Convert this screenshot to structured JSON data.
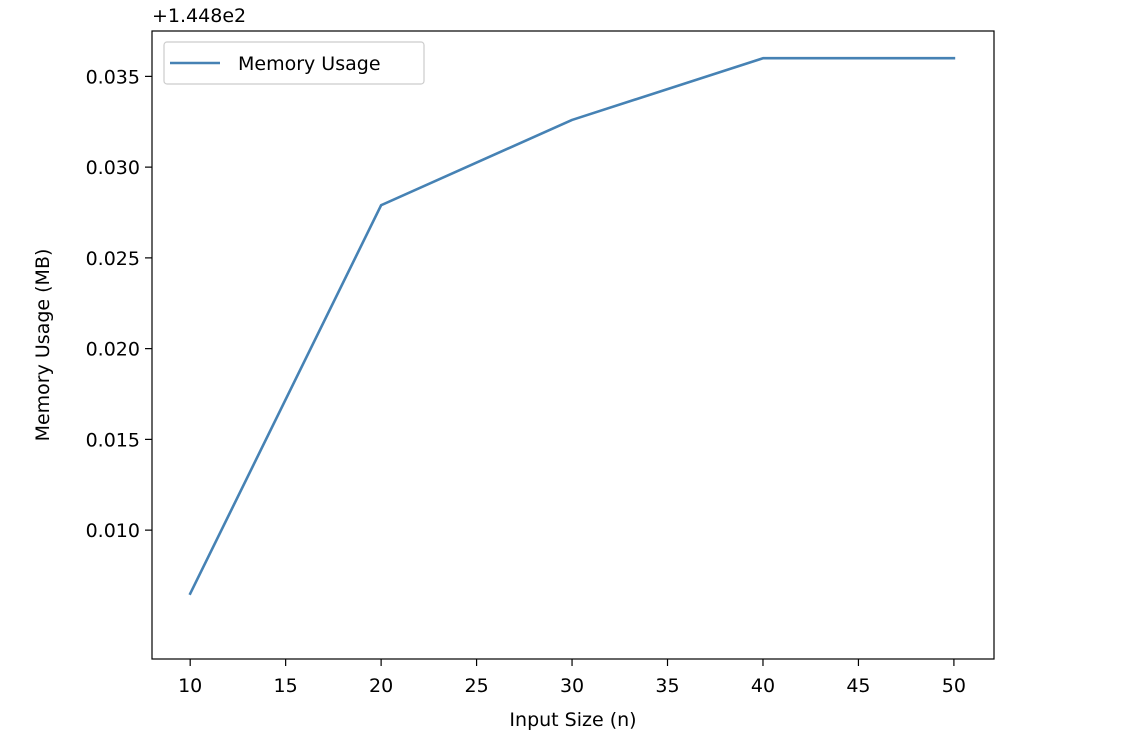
{
  "chart_data": {
    "type": "line",
    "title": "",
    "xlabel": "Input Size (n)",
    "ylabel": "Memory Usage (MB)",
    "offset_label": "+1.448e2",
    "offset_value": 144.8,
    "x": [
      10,
      20,
      30,
      40,
      50
    ],
    "series": [
      {
        "name": "Memory Usage",
        "color": "#4682b4",
        "values": [
          144.8065,
          144.8279,
          144.8326,
          144.836,
          144.836
        ]
      }
    ],
    "xlim": [
      8,
      52.1
    ],
    "ylim": [
      144.8029,
      144.8375
    ],
    "xticks": [
      10,
      15,
      20,
      25,
      30,
      35,
      40,
      45,
      50
    ],
    "xtick_labels": [
      "10",
      "15",
      "20",
      "25",
      "30",
      "35",
      "40",
      "45",
      "50"
    ],
    "yticks": [
      0.01,
      0.015,
      0.02,
      0.025,
      0.03,
      0.035
    ],
    "ytick_labels": [
      "0.010",
      "0.015",
      "0.020",
      "0.025",
      "0.030",
      "0.035"
    ],
    "grid": false,
    "legend_position": "upper left"
  }
}
